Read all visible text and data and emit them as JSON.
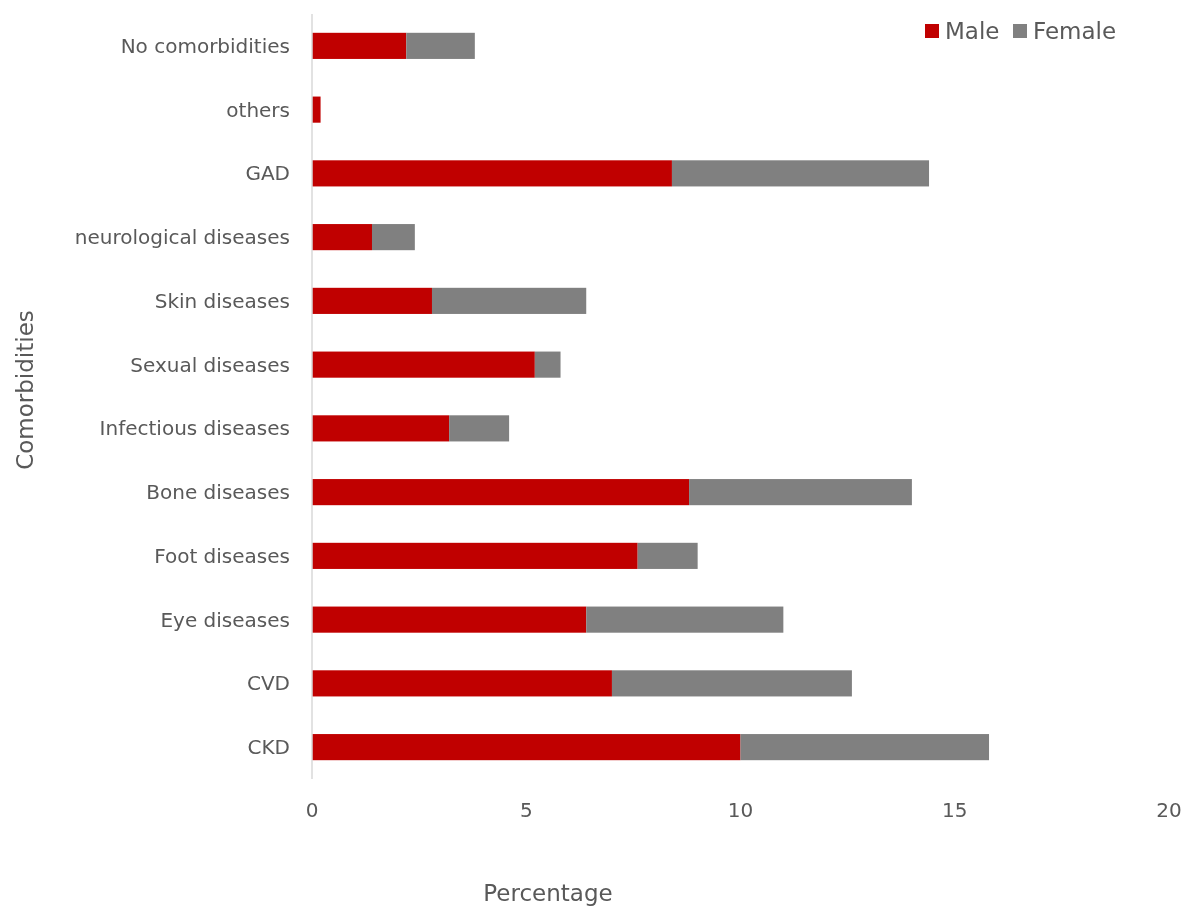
{
  "chart_data": {
    "type": "bar",
    "orientation": "horizontal",
    "stacked": true,
    "xlabel": "Percentage",
    "ylabel": "Comorbidities",
    "categories": [
      "No comorbidities",
      "others",
      "GAD",
      "neurological diseases",
      "Skin diseases",
      "Sexual diseases",
      "Infectious diseases",
      "Bone diseases",
      "Foot diseases",
      "Eye diseases",
      "CVD",
      "CKD"
    ],
    "series": [
      {
        "name": "Male",
        "color": "#c00000",
        "values": [
          2.2,
          0.2,
          8.4,
          1.4,
          2.8,
          5.2,
          3.2,
          8.8,
          7.6,
          6.4,
          7.0,
          10.0
        ]
      },
      {
        "name": "Female",
        "color": "#808080",
        "values": [
          1.6,
          0,
          6.0,
          1.0,
          3.6,
          0.6,
          1.4,
          5.2,
          1.4,
          4.6,
          5.6,
          5.8
        ]
      }
    ],
    "xlim": [
      0,
      20
    ],
    "xticks": [
      0,
      5,
      10,
      15,
      20
    ],
    "grid": false,
    "legend": "top right"
  }
}
